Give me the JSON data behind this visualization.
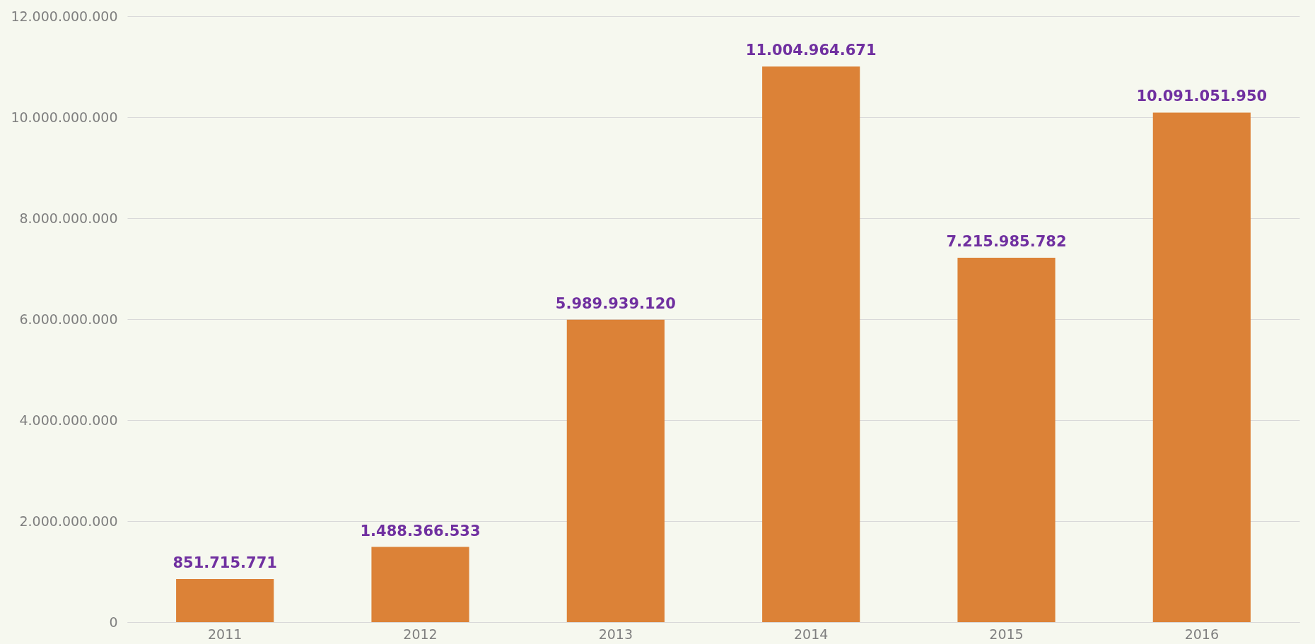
{
  "chart_data": {
    "type": "bar",
    "categories": [
      "2011",
      "2012",
      "2013",
      "2014",
      "2015",
      "2016"
    ],
    "values": [
      851715771,
      1488366533,
      5989939120,
      11004964671,
      7215985782,
      10091051950
    ],
    "value_labels": [
      "851.715.771",
      "1.488.366.533",
      "5.989.939.120",
      "11.004.964.671",
      "7.215.985.782",
      "10.091.051.950"
    ],
    "color": "#dc8237",
    "ylim": [
      0,
      12000000000
    ],
    "yticks": [
      {
        "value": 0,
        "label": "0"
      },
      {
        "value": 2000000000,
        "label": "2.000.000.000"
      },
      {
        "value": 4000000000,
        "label": "4.000.000.000"
      },
      {
        "value": 6000000000,
        "label": "6.000.000.000"
      },
      {
        "value": 8000000000,
        "label": "8.000.000.000"
      },
      {
        "value": 10000000000,
        "label": "10.000.000.000"
      },
      {
        "value": 12000000000,
        "label": "12.000.000.000"
      }
    ],
    "grid": "y"
  }
}
